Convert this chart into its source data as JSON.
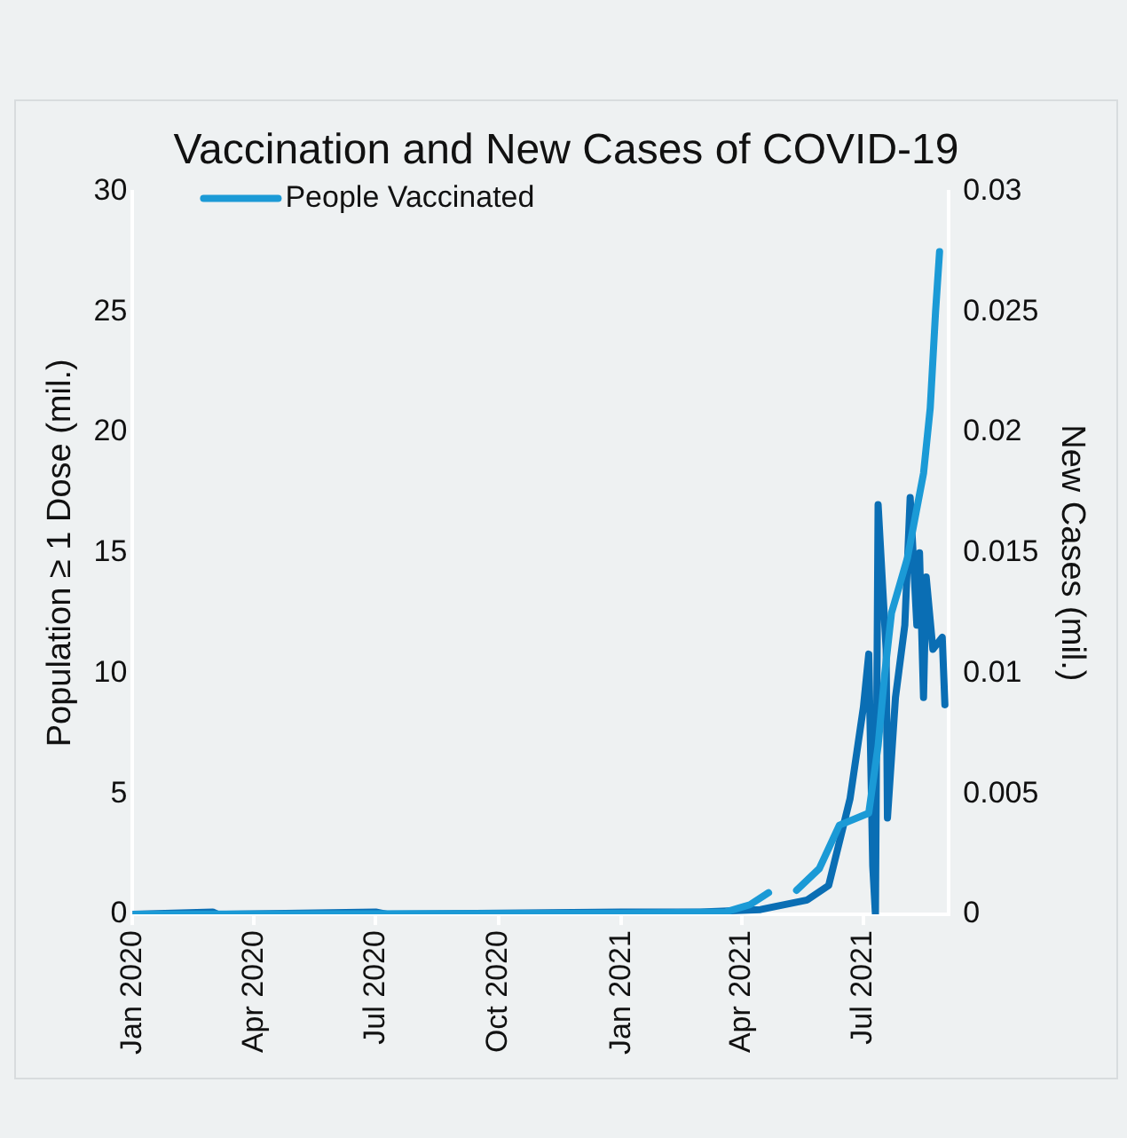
{
  "chart_data": {
    "type": "line",
    "title": "Vaccination and New Cases of COVID-19",
    "ylabel": "Population ≥ 1 Dose (mil.)",
    "y2label": "New Cases (mil.)",
    "xlim": [
      "2020-01-01",
      "2021-09-03"
    ],
    "xticks": [
      {
        "value": "2020-01-01",
        "label": "Jan 2020"
      },
      {
        "value": "2020-04-01",
        "label": "Apr 2020"
      },
      {
        "value": "2020-07-01",
        "label": "Jul 2020"
      },
      {
        "value": "2020-10-01",
        "label": "Oct 2020"
      },
      {
        "value": "2021-01-01",
        "label": "Jan 2021"
      },
      {
        "value": "2021-04-01",
        "label": "Apr 2021"
      },
      {
        "value": "2021-07-01",
        "label": "Jul 2021"
      }
    ],
    "ylim": [
      0,
      30
    ],
    "yticks": [
      0,
      5,
      10,
      15,
      20,
      25,
      30
    ],
    "y2lim": [
      0,
      0.03
    ],
    "y2ticks": [
      0,
      0.005,
      0.01,
      0.015,
      0.02,
      0.025,
      0.03
    ],
    "legend": "top left",
    "grid": false,
    "marker": "none",
    "line_style": "solid",
    "series": [
      {
        "name": "People Vaccinated",
        "color": "#1b9ad6",
        "x": [
          "2020-01-01",
          "2021-01-01",
          "2021-03-20",
          "2021-04-07",
          "2021-04-21",
          "2021-04-30",
          "2021-05-12",
          "2021-05-29",
          "2021-06-13",
          "2021-07-05",
          "2021-07-12",
          "2021-07-17",
          "2021-07-22",
          "2021-08-03",
          "2021-08-15",
          "2021-08-20",
          "2021-08-24",
          "2021-08-27"
        ],
        "values": [
          0,
          0.05,
          0.1,
          0.4,
          0.9,
          null,
          1.0,
          1.9,
          3.7,
          4.2,
          7,
          10,
          12.5,
          14.8,
          18.3,
          21,
          25,
          27.5
        ]
      },
      {
        "color": "#0a6eb4",
        "axis": "y2",
        "x": [
          "2020-01-01",
          "2020-03-01",
          "2020-03-05",
          "2020-07-01",
          "2020-07-10",
          "2021-01-01",
          "2021-03-01",
          "2021-04-15",
          "2021-05-20",
          "2021-06-05",
          "2021-06-21",
          "2021-07-01",
          "2021-07-05",
          "2021-07-08",
          "2021-07-10",
          "2021-07-12",
          "2021-07-18",
          "2021-07-19",
          "2021-07-25",
          "2021-08-01",
          "2021-08-05",
          "2021-08-10",
          "2021-08-12",
          "2021-08-15",
          "2021-08-17",
          "2021-08-22",
          "2021-08-29",
          "2021-08-31"
        ],
        "values": [
          0,
          0.0001,
          0,
          0.0001,
          0,
          0.0001,
          0.0001,
          0.0002,
          0.0006,
          0.0012,
          0.0048,
          0.0086,
          0.0108,
          0.002,
          0,
          0.017,
          0.011,
          0.004,
          0.009,
          0.012,
          0.0173,
          0.012,
          0.015,
          0.009,
          0.014,
          0.011,
          0.0115,
          0.0087
        ]
      }
    ]
  }
}
